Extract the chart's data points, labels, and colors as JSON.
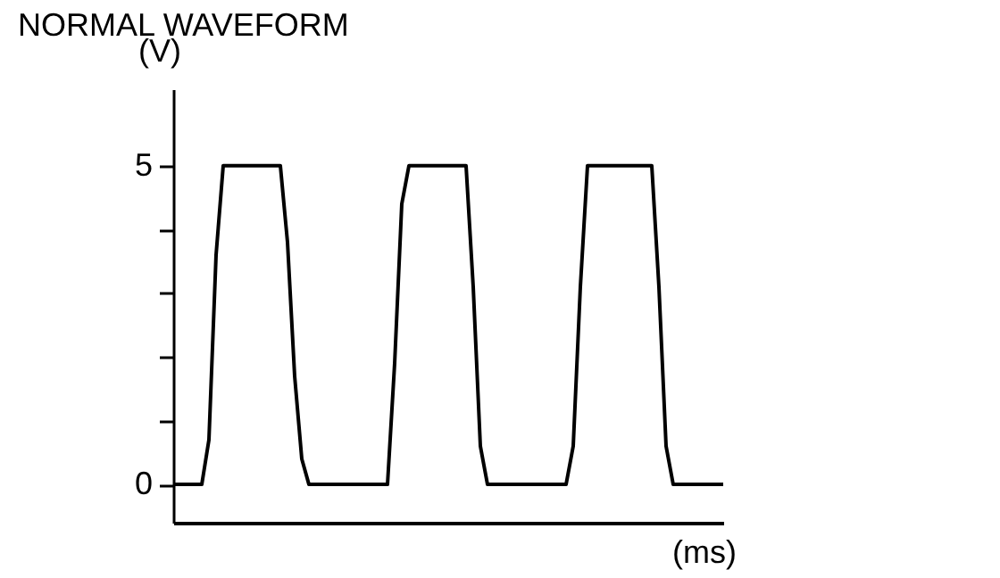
{
  "chart_data": {
    "type": "line",
    "title": "NORMAL WAVEFORM",
    "xlabel": "(ms)",
    "ylabel": "(V)",
    "categories": [
      null,
      null,
      null,
      null,
      null,
      null,
      null,
      null,
      null,
      null,
      null,
      null,
      null,
      null,
      null,
      null,
      null,
      null,
      null,
      null,
      null,
      null,
      null,
      null,
      null,
      null,
      null,
      null,
      null,
      null,
      null,
      null,
      null,
      null,
      null,
      null,
      null,
      null,
      null,
      null,
      null,
      null,
      null,
      null,
      null,
      null,
      null,
      null,
      null,
      null,
      null,
      null,
      null,
      null,
      null,
      null,
      null,
      null,
      null,
      null,
      null,
      null,
      null,
      null,
      null,
      null,
      null,
      null,
      null,
      null,
      null,
      null,
      null,
      null,
      null,
      null,
      null,
      null
    ],
    "series": [
      {
        "color": "#000000",
        "values": [
          0,
          0,
          0,
          0,
          0,
          0.7,
          3.6,
          5,
          5,
          5,
          5,
          5,
          5,
          5,
          5,
          5,
          3.8,
          1.7,
          0.4,
          0,
          0,
          0,
          0,
          0,
          0,
          0,
          0,
          0,
          0,
          0,
          0,
          1.9,
          4.4,
          5,
          5,
          5,
          5,
          5,
          5,
          5,
          5,
          5,
          3.1,
          0.6,
          0,
          0,
          0,
          0,
          0,
          0,
          0,
          0,
          0,
          0,
          0,
          0,
          0.6,
          3.1,
          5,
          5,
          5,
          5,
          5,
          5,
          5,
          5,
          5,
          5,
          3.1,
          0.6,
          0,
          0,
          0,
          0,
          0,
          0,
          0,
          0
        ]
      }
    ],
    "ylim": [
      -0.6,
      6.2
    ],
    "yticks": [
      0,
      {
        "value": 1,
        "label": null
      },
      {
        "value": 2,
        "label": null
      },
      {
        "value": 3,
        "label": null
      },
      {
        "value": 4,
        "label": null
      },
      5
    ],
    "tick_labels": "y",
    "grid": false,
    "marker": "none",
    "line_style": "solid"
  }
}
